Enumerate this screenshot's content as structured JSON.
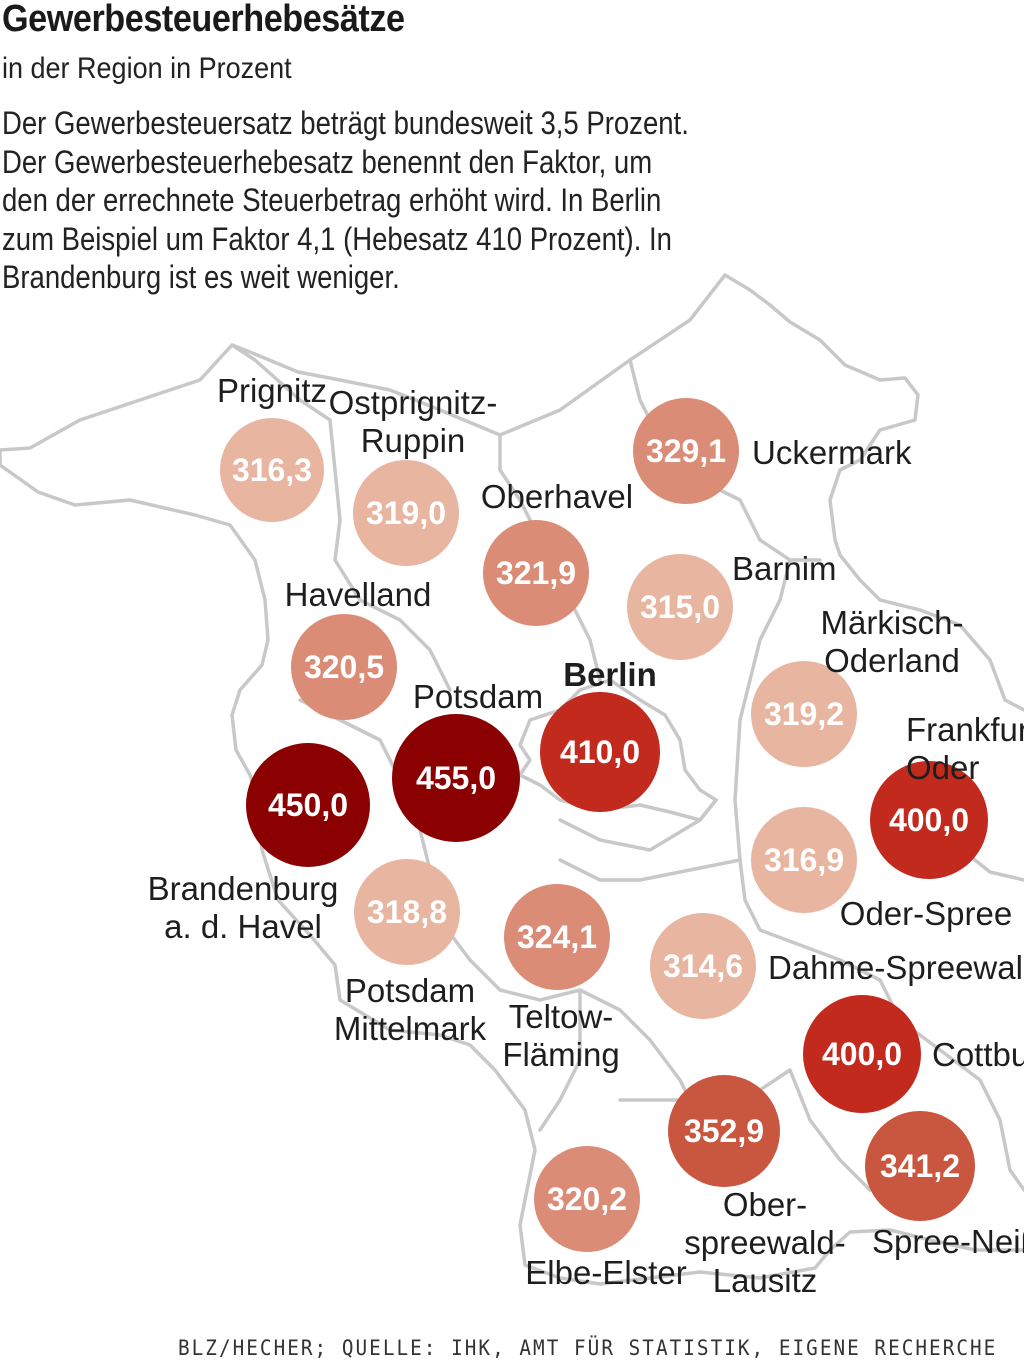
{
  "header": {
    "title": "Gewerbesteuerhebesätze",
    "subtitle": "in der Region in Prozent",
    "description_lines": [
      "Der Gewerbesteuersatz beträgt bundesweit 3,5 Prozent.",
      "Der Gewerbesteuerhebesatz benennt den Faktor, um",
      "den der errechnete Steuerbetrag erhöht wird. In Berlin",
      "zum Beispiel um Faktor 4,1 (Hebesatz 410 Prozent). In",
      "Brandenburg ist es weit weniger."
    ]
  },
  "credit": "BLZ/HECHER; QUELLE: IHK, AMT FÜR STATISTIK, EIGENE RECHERCHE",
  "colors": {
    "outline": "#c8c8c8",
    "scale": [
      "#e7b5a0",
      "#da8c76",
      "#c9563f",
      "#c22a1d",
      "#8b0000"
    ]
  },
  "regions": [
    {
      "id": "prignitz",
      "name_lines": [
        "Prignitz"
      ],
      "value": "316,3"
    },
    {
      "id": "ostprignitz-ruppin",
      "name_lines": [
        "Ostprignitz-",
        "Ruppin"
      ],
      "value": "319,0"
    },
    {
      "id": "oberhavel",
      "name_lines": [
        "Oberhavel"
      ],
      "value": "321,9"
    },
    {
      "id": "uckermark",
      "name_lines": [
        "Uckermark"
      ],
      "value": "329,1"
    },
    {
      "id": "barnim",
      "name_lines": [
        "Barnim"
      ],
      "value": "315,0"
    },
    {
      "id": "havelland",
      "name_lines": [
        "Havelland"
      ],
      "value": "320,5"
    },
    {
      "id": "maerkisch-oderland",
      "name_lines": [
        "Märkisch-",
        "Oderland"
      ],
      "value": "319,2"
    },
    {
      "id": "berlin",
      "name_lines": [
        "Berlin"
      ],
      "value": "410,0"
    },
    {
      "id": "potsdam",
      "name_lines": [
        "Potsdam"
      ],
      "value": "455,0"
    },
    {
      "id": "brandenburg-havel",
      "name_lines": [
        "Brandenburg",
        "a. d. Havel"
      ],
      "value": "450,0"
    },
    {
      "id": "frankfurt-oder",
      "name_lines": [
        "Frankfurt",
        "Oder"
      ],
      "value": "400,0"
    },
    {
      "id": "oder-spree",
      "name_lines": [
        "Oder-Spree"
      ],
      "value": "316,9"
    },
    {
      "id": "potsdam-mittelmark",
      "name_lines": [
        "Potsdam",
        "Mittelmark"
      ],
      "value": "318,8"
    },
    {
      "id": "teltow-flaeming",
      "name_lines": [
        "Teltow-",
        "Fläming"
      ],
      "value": "324,1"
    },
    {
      "id": "dahme-spreewald",
      "name_lines": [
        "Dahme-Spreewald"
      ],
      "value": "314,6"
    },
    {
      "id": "cottbus",
      "name_lines": [
        "Cottbus"
      ],
      "value": "400,0"
    },
    {
      "id": "oberspreewald-lausitz",
      "name_lines": [
        "Ober-",
        "spreewald-",
        "Lausitz"
      ],
      "value": "352,9"
    },
    {
      "id": "spree-neisse",
      "name_lines": [
        "Spree-Neiße"
      ],
      "value": "341,2"
    },
    {
      "id": "elbe-elster",
      "name_lines": [
        "Elbe-Elster"
      ],
      "value": "320,2"
    }
  ]
}
